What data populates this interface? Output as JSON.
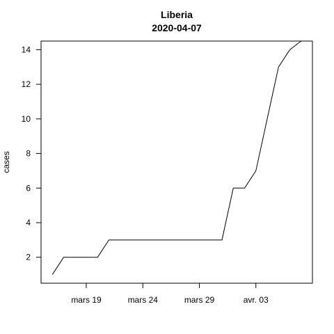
{
  "chart_data": {
    "type": "line",
    "title": "Liberia",
    "subtitle": "2020-04-07",
    "xlabel": "",
    "ylabel": "cases",
    "x": [
      "2020-03-16",
      "2020-03-17",
      "2020-03-18",
      "2020-03-19",
      "2020-03-20",
      "2020-03-21",
      "2020-03-22",
      "2020-03-23",
      "2020-03-24",
      "2020-03-25",
      "2020-03-26",
      "2020-03-27",
      "2020-03-28",
      "2020-03-29",
      "2020-03-30",
      "2020-03-31",
      "2020-04-01",
      "2020-04-02",
      "2020-04-03",
      "2020-04-04",
      "2020-04-05",
      "2020-04-06",
      "2020-04-07"
    ],
    "series": [
      {
        "values": [
          1,
          2,
          2,
          2,
          2,
          3,
          3,
          3,
          3,
          3,
          3,
          3,
          3,
          3,
          3,
          3,
          6,
          6,
          7,
          10,
          13,
          14,
          14.5
        ]
      }
    ],
    "xlim": [
      "2020-03-15",
      "2020-04-08"
    ],
    "ylim": [
      0.5,
      14.5
    ],
    "x_ticks": [
      {
        "date": "2020-03-19",
        "label": "mars 19"
      },
      {
        "date": "2020-03-24",
        "label": "mars 24"
      },
      {
        "date": "2020-03-29",
        "label": "mars 29"
      },
      {
        "date": "2020-04-03",
        "label": "avr. 03"
      }
    ],
    "y_ticks": [
      2,
      4,
      6,
      8,
      10,
      12,
      14
    ],
    "grid": false,
    "colors": {
      "line": "#000000",
      "axis": "#000000",
      "background": "#ffffff"
    }
  }
}
